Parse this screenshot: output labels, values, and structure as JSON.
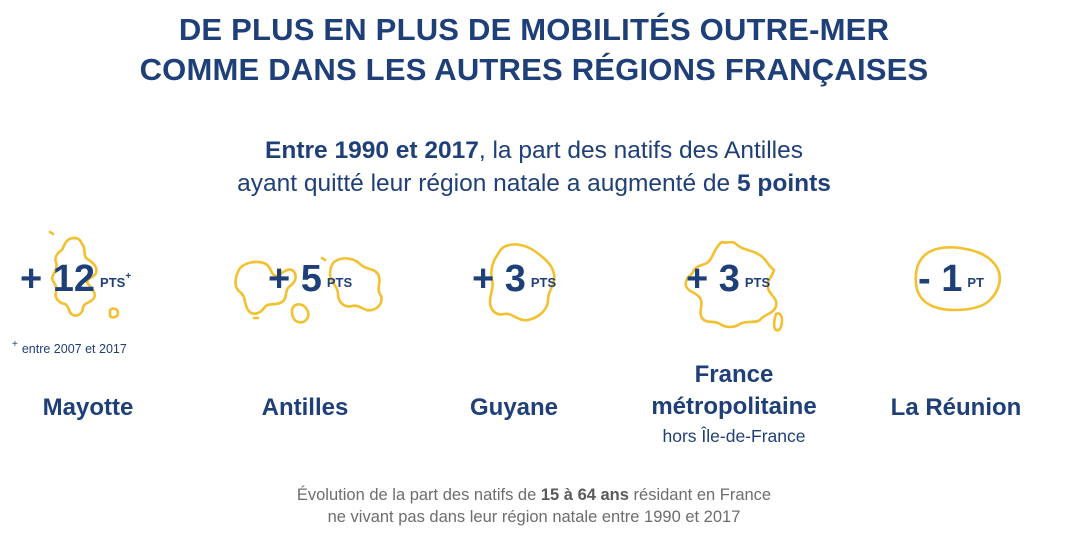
{
  "title": {
    "line1": "DE PLUS EN PLUS DE MOBILITÉS OUTRE-MER",
    "line2": "COMME DANS LES AUTRES RÉGIONS FRANÇAISES"
  },
  "subtitle": {
    "bold_start": "Entre 1990 et 2017",
    "mid": ", la part des natifs des Antilles",
    "line2_prefix": "ayant quitté leur région natale a augmenté de ",
    "bold_end": "5 points"
  },
  "regions": [
    {
      "name": "Mayotte",
      "value": "+ 12",
      "unit": "PTS",
      "unit_sup": "+",
      "note_star": "+",
      "note": "entre 2007 et 2017",
      "map_icon": "mayotte-outline"
    },
    {
      "name": "Antilles",
      "value": "+ 5",
      "unit": "PTS",
      "map_icon": "antilles-outline"
    },
    {
      "name": "Guyane",
      "value": "+ 3",
      "unit": "PTS",
      "map_icon": "guyane-outline"
    },
    {
      "name_line1": "France",
      "name_line2": "métropolitaine",
      "sub": "hors Île-de-France",
      "value": "+ 3",
      "unit": "PTS",
      "map_icon": "france-outline"
    },
    {
      "name": "La Réunion",
      "value": "- 1",
      "unit": "PT",
      "map_icon": "reunion-outline"
    }
  ],
  "footer": {
    "line1_prefix": "Évolution de la part des natifs de ",
    "line1_bold": "15 à 64 ans",
    "line1_suffix": " résidant en France",
    "line2": "ne vivant pas dans leur région natale entre 1990 et 2017"
  },
  "colors": {
    "text": "#1f3f79",
    "outline": "#f3c030",
    "footer": "#6d6d6d",
    "background": "#ffffff"
  }
}
